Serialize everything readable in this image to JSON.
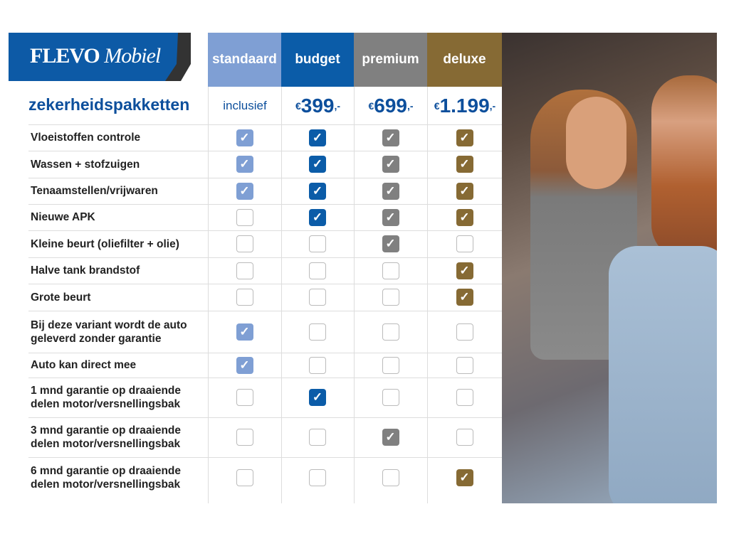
{
  "logo": {
    "brand": "FLEVO",
    "sub": "Mobiel"
  },
  "title": "zekerheidspakketten",
  "packages": [
    {
      "name": "standaard",
      "price": "inclusief",
      "color": "#7f9fd4"
    },
    {
      "name": "budget",
      "price_symbol": "€",
      "price": "399",
      "price_suffix": ",-",
      "color": "#0b5ca8"
    },
    {
      "name": "premium",
      "price_symbol": "€",
      "price": "699",
      "price_suffix": ",-",
      "color": "#808080"
    },
    {
      "name": "deluxe",
      "price_symbol": "€",
      "price": "1.199",
      "price_suffix": ",-",
      "color": "#866a34"
    }
  ],
  "features": [
    {
      "label": "Vloeistoffen controle",
      "checks": [
        true,
        true,
        true,
        true
      ]
    },
    {
      "label": "Wassen + stofzuigen",
      "checks": [
        true,
        true,
        true,
        true
      ]
    },
    {
      "label": "Tenaamstellen/vrijwaren",
      "checks": [
        true,
        true,
        true,
        true
      ]
    },
    {
      "label": "Nieuwe APK",
      "checks": [
        false,
        true,
        true,
        true
      ]
    },
    {
      "label": "Kleine beurt (oliefilter + olie)",
      "checks": [
        false,
        false,
        true,
        false
      ]
    },
    {
      "label": "Halve tank brandstof",
      "checks": [
        false,
        false,
        false,
        true
      ]
    },
    {
      "label": "Grote beurt",
      "checks": [
        false,
        false,
        false,
        true
      ]
    },
    {
      "label": "Bij deze variant wordt de auto geleverd zonder garantie",
      "checks": [
        true,
        false,
        false,
        false
      ]
    },
    {
      "label": "Auto kan direct mee",
      "checks": [
        true,
        false,
        false,
        false
      ]
    },
    {
      "label": "1 mnd garantie op draaiende delen motor/versnellingsbak",
      "checks": [
        false,
        true,
        false,
        false
      ]
    },
    {
      "label": "3 mnd garantie op draaiende delen motor/versnellingsbak",
      "checks": [
        false,
        false,
        true,
        false
      ]
    },
    {
      "label": "6 mnd garantie op draaiende delen motor/versnellingsbak",
      "checks": [
        false,
        false,
        false,
        true
      ]
    }
  ],
  "check_icon": "checkmark-icon"
}
